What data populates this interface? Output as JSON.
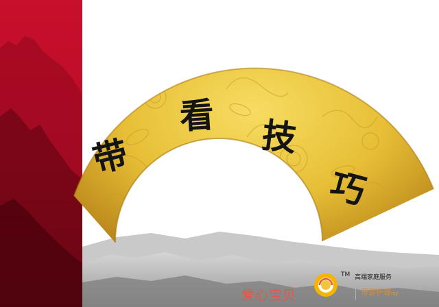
{
  "fan_title": {
    "chars": [
      "带",
      "看",
      "技",
      "巧"
    ]
  },
  "logo": {
    "brand_name": "爱心宝贝",
    "trademark": "TM",
    "service_label": "高端家庭服务",
    "slogan": "母婴护理",
    "slogan_suffix": "rsy",
    "icon": "sun-ring-logo-icon"
  },
  "colors": {
    "side_band": "#c8102e",
    "fan_gold": "#e5bf3a",
    "brand_red": "#e6554d",
    "logo_gold": "#f2b705"
  }
}
